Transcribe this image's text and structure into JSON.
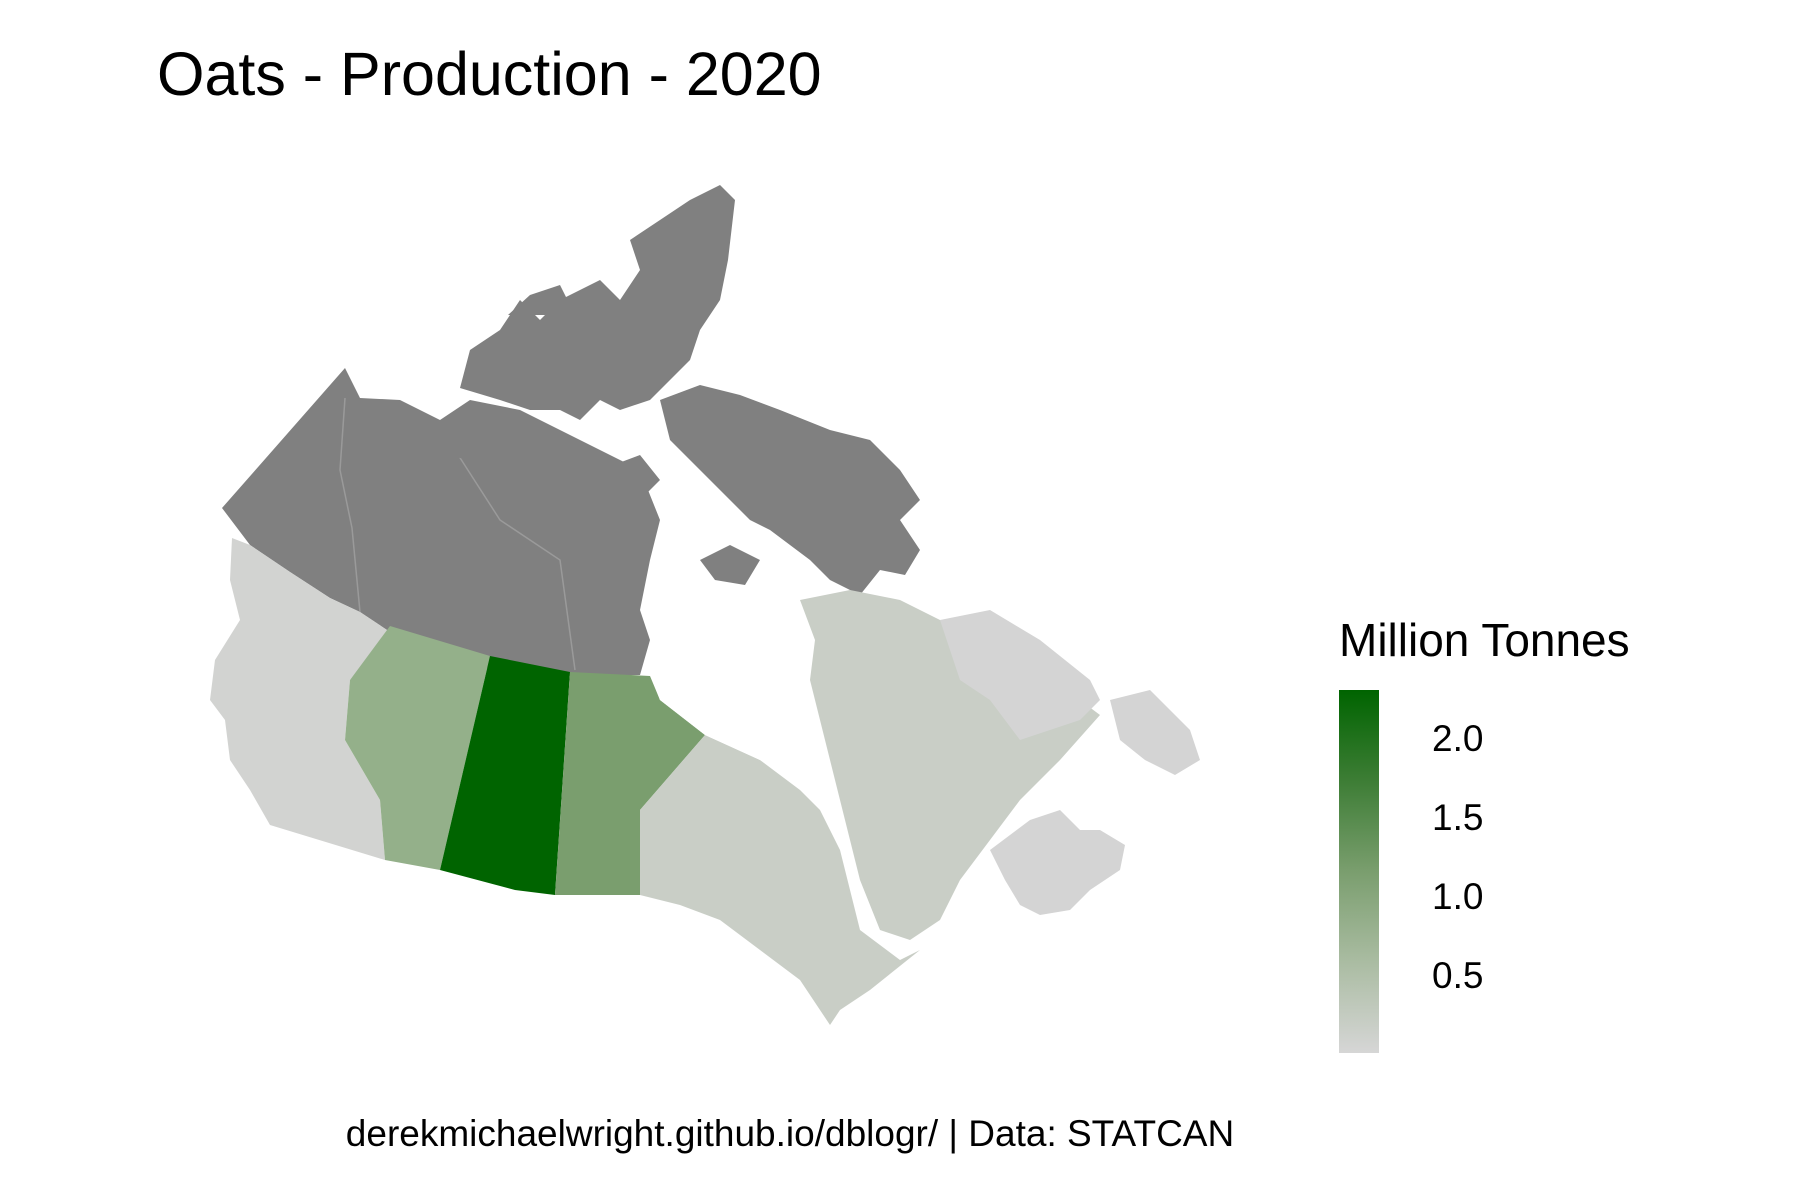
{
  "title": "Oats - Production - 2020",
  "caption": "derekmichaelwright.github.io/dblogr/ | Data: STATCAN",
  "legend": {
    "title": "Million Tonnes",
    "ticks": [
      "2.0",
      "1.5",
      "1.0",
      "0.5"
    ],
    "low_color": "#d6d6d6",
    "high_color": "#006400"
  },
  "colors": {
    "no_data": "#808080",
    "saskatchewan": "#006400",
    "manitoba": "#7a9e6e",
    "alberta": "#94b08a",
    "quebec_ontario": "#c9cec6",
    "british_columbia": "#d2d3d1",
    "atlantic": "#d4d4d4"
  }
}
